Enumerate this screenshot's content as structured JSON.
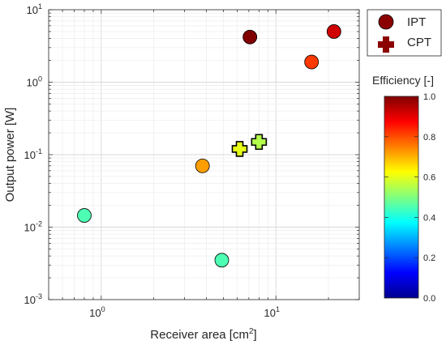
{
  "chart_data": {
    "type": "scatter",
    "xlabel": "Receiver area [cm",
    "xlabel_sup": "2",
    "xlabel_suffix": "]",
    "ylabel": "Output power [W]",
    "x_scale": "log",
    "y_scale": "log",
    "xlim": [
      0.5,
      30
    ],
    "ylim": [
      0.001,
      10
    ],
    "grid": true,
    "x_ticks": [
      {
        "value": 1,
        "base": "10",
        "exp": "0"
      },
      {
        "value": 10,
        "base": "10",
        "exp": "1"
      }
    ],
    "y_ticks": [
      {
        "value": 0.001,
        "base": "10",
        "exp": "-3"
      },
      {
        "value": 0.01,
        "base": "10",
        "exp": "-2"
      },
      {
        "value": 0.1,
        "base": "10",
        "exp": "-1"
      },
      {
        "value": 1,
        "base": "10",
        "exp": "0"
      },
      {
        "value": 10,
        "base": "10",
        "exp": "1"
      }
    ],
    "legend_position": "outside top-right",
    "series": [
      {
        "name": "IPT",
        "marker": "circle",
        "points": [
          {
            "x": 0.8,
            "y": 0.0145,
            "efficiency": 0.45
          },
          {
            "x": 3.8,
            "y": 0.07,
            "efficiency": 0.72
          },
          {
            "x": 4.9,
            "y": 0.0035,
            "efficiency": 0.45
          },
          {
            "x": 7.1,
            "y": 4.2,
            "efficiency": 1.0
          },
          {
            "x": 16.0,
            "y": 1.9,
            "efficiency": 0.82
          },
          {
            "x": 21.5,
            "y": 5.0,
            "efficiency": 0.92
          }
        ]
      },
      {
        "name": "CPT",
        "marker": "cross",
        "points": [
          {
            "x": 6.2,
            "y": 0.12,
            "efficiency": 0.6
          },
          {
            "x": 8.0,
            "y": 0.15,
            "efficiency": 0.55
          }
        ]
      }
    ],
    "legend_swatch_color": "#8b0000",
    "colorbar": {
      "title": "Efficiency [-]",
      "colormap": "jet",
      "ticks": [
        "0.0",
        "0.2",
        "0.4",
        "0.6",
        "0.8",
        "1.0"
      ],
      "range": [
        0,
        1
      ]
    }
  }
}
